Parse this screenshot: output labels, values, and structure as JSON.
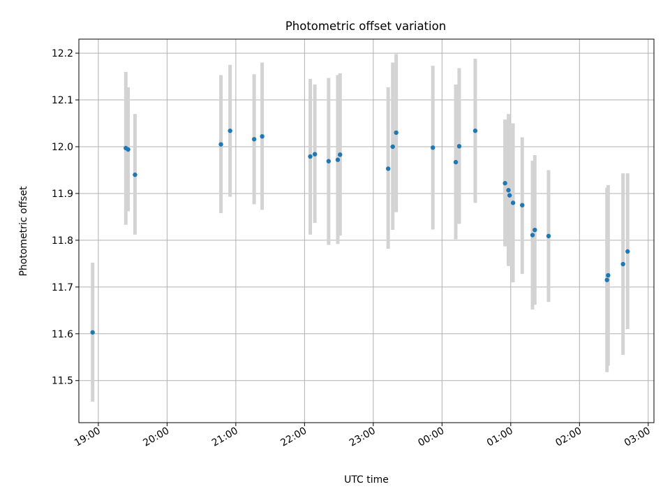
{
  "chart_data": {
    "type": "scatter",
    "title": "Photometric offset variation",
    "xlabel": "UTC time",
    "ylabel": "Photometric offset",
    "x_ticks": [
      "19:00",
      "20:00",
      "21:00",
      "22:00",
      "23:00",
      "00:00",
      "01:00",
      "02:00",
      "03:00"
    ],
    "y_ticks": [
      "11.5",
      "11.6",
      "11.7",
      "11.8",
      "11.9",
      "12.0",
      "12.1",
      "12.2"
    ],
    "x_axis": "time (UTC, hh:mm)",
    "x_range": [
      "18:43",
      "03:05"
    ],
    "ylim": [
      11.41,
      12.23
    ],
    "grid": true,
    "marker_color": "#1f77b4",
    "errorbar_color": "#d3d3d3",
    "axes_color": "#000000",
    "grid_color": "#b0b0b0",
    "series": [
      {
        "points": [
          {
            "x": "18:55",
            "y": 11.603,
            "lo": 11.455,
            "hi": 11.752
          },
          {
            "x": "19:24",
            "y": 11.997,
            "lo": 11.833,
            "hi": 12.16
          },
          {
            "x": "19:26",
            "y": 11.994,
            "lo": 11.862,
            "hi": 12.127
          },
          {
            "x": "19:32",
            "y": 11.94,
            "lo": 11.812,
            "hi": 12.07
          },
          {
            "x": "20:47",
            "y": 12.005,
            "lo": 11.858,
            "hi": 12.153
          },
          {
            "x": "20:55",
            "y": 12.034,
            "lo": 11.893,
            "hi": 12.175
          },
          {
            "x": "21:16",
            "y": 12.016,
            "lo": 11.877,
            "hi": 12.155
          },
          {
            "x": "21:23",
            "y": 12.022,
            "lo": 11.865,
            "hi": 12.18
          },
          {
            "x": "22:05",
            "y": 11.979,
            "lo": 11.812,
            "hi": 12.145
          },
          {
            "x": "22:09",
            "y": 11.984,
            "lo": 11.837,
            "hi": 12.133
          },
          {
            "x": "22:21",
            "y": 11.969,
            "lo": 11.79,
            "hi": 12.147
          },
          {
            "x": "22:29",
            "y": 11.972,
            "lo": 11.792,
            "hi": 12.153
          },
          {
            "x": "22:31",
            "y": 11.983,
            "lo": 11.81,
            "hi": 12.157
          },
          {
            "x": "23:13",
            "y": 11.953,
            "lo": 11.782,
            "hi": 12.127
          },
          {
            "x": "23:17",
            "y": 12.0,
            "lo": 11.822,
            "hi": 12.18
          },
          {
            "x": "23:20",
            "y": 12.03,
            "lo": 11.86,
            "hi": 12.198
          },
          {
            "x": "23:52",
            "y": 11.998,
            "lo": 11.823,
            "hi": 12.173
          },
          {
            "x": "00:12",
            "y": 11.967,
            "lo": 11.802,
            "hi": 12.133
          },
          {
            "x": "00:15",
            "y": 12.001,
            "lo": 11.835,
            "hi": 12.168
          },
          {
            "x": "00:29",
            "y": 12.034,
            "lo": 11.88,
            "hi": 12.188
          },
          {
            "x": "00:55",
            "y": 11.922,
            "lo": 11.787,
            "hi": 12.058
          },
          {
            "x": "00:58",
            "y": 11.907,
            "lo": 11.745,
            "hi": 12.07
          },
          {
            "x": "00:59",
            "y": 11.896,
            "lo": 11.745,
            "hi": 12.05
          },
          {
            "x": "01:02",
            "y": 11.88,
            "lo": 11.71,
            "hi": 12.05
          },
          {
            "x": "01:10",
            "y": 11.875,
            "lo": 11.728,
            "hi": 12.02
          },
          {
            "x": "01:19",
            "y": 11.811,
            "lo": 11.652,
            "hi": 11.97
          },
          {
            "x": "01:21",
            "y": 11.822,
            "lo": 11.662,
            "hi": 11.982
          },
          {
            "x": "01:33",
            "y": 11.809,
            "lo": 11.668,
            "hi": 11.95
          },
          {
            "x": "02:24",
            "y": 11.715,
            "lo": 11.518,
            "hi": 11.912
          },
          {
            "x": "02:25",
            "y": 11.725,
            "lo": 11.532,
            "hi": 11.918
          },
          {
            "x": "02:38",
            "y": 11.749,
            "lo": 11.555,
            "hi": 11.943
          },
          {
            "x": "02:42",
            "y": 11.776,
            "lo": 11.61,
            "hi": 11.943
          }
        ]
      }
    ]
  }
}
